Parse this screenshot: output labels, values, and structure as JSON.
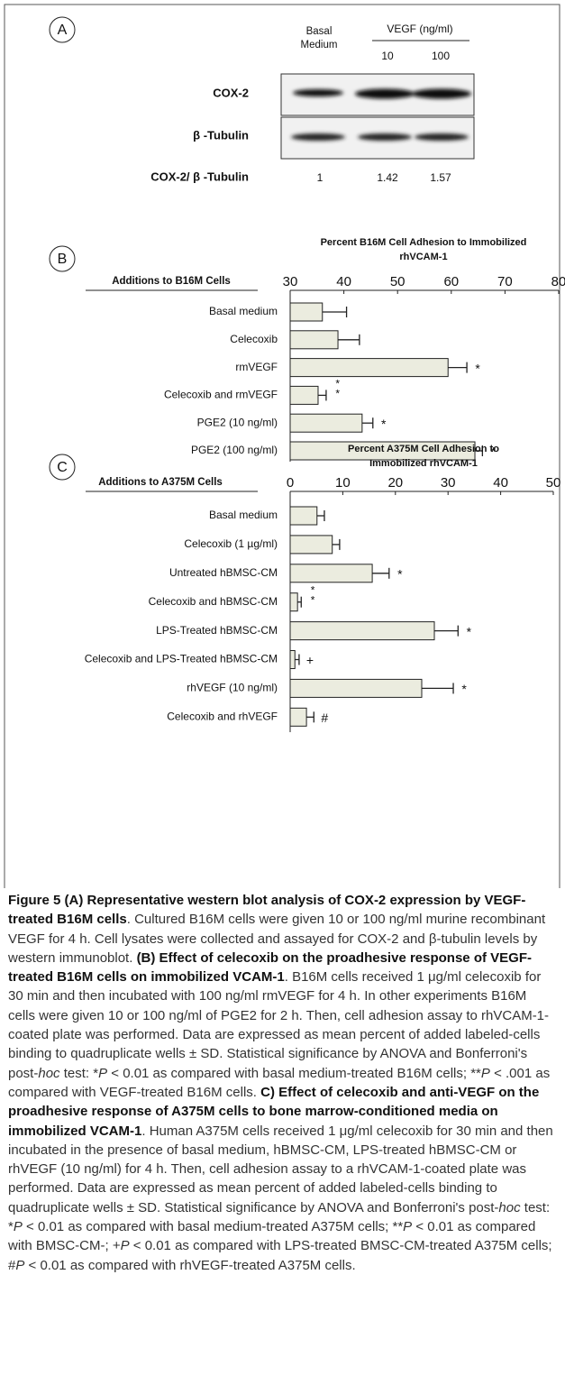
{
  "panel_a": {
    "label": "A",
    "column_header": "Basal Medium",
    "group_header": "VEGF (ng/ml)",
    "doses": [
      "10",
      "100"
    ],
    "rows": [
      "COX-2",
      "β -Tubulin"
    ],
    "ratio_label": "COX-2/ β -Tubulin",
    "ratios": [
      1,
      1.42,
      1.57
    ]
  },
  "chart_data": [
    {
      "type": "bar",
      "orientation": "horizontal",
      "panel_label": "B",
      "title": "Percent B16M Cell Adhesion to Immobilized rhVCAM-1",
      "category_header": "Additions to B16M Cells",
      "categories": [
        "Basal medium",
        "Celecoxib",
        "rmVEGF",
        "Celecoxib and rmVEGF",
        "PGE2 (10 ng/ml)",
        "PGE2 (100 ng/ml)"
      ],
      "values": [
        36.0,
        38.9,
        59.4,
        35.2,
        43.4,
        64.4
      ],
      "errors": [
        4.5,
        4.0,
        3.5,
        1.5,
        2.0,
        1.4
      ],
      "markers": [
        null,
        null,
        "*",
        "**",
        "*",
        "*"
      ],
      "color": "#ebecdf",
      "xlim": [
        30,
        80
      ],
      "xticks": [
        30,
        40,
        50,
        60,
        70,
        80
      ]
    },
    {
      "type": "bar",
      "orientation": "horizontal",
      "panel_label": "C",
      "title": "Percent A375M Cell Adhesion to Immobilized rhVCAM-1",
      "category_header": "Additions to A375M Cells",
      "categories": [
        "Basal medium",
        "Celecoxib (1 µg/ml)",
        "Untreated hBMSC-CM",
        "Celecoxib and hBMSC-CM",
        "LPS-Treated hBMSC-CM",
        "Celecoxib  and LPS-Treated hBMSC-CM",
        "rhVEGF (10 ng/ml)",
        "Celecoxib and rhVEGF"
      ],
      "values": [
        5.1,
        8.0,
        15.6,
        1.4,
        27.4,
        0.9,
        25.0,
        3.1
      ],
      "errors": [
        1.4,
        1.4,
        3.2,
        0.7,
        4.5,
        0.8,
        6.0,
        1.4
      ],
      "markers": [
        null,
        null,
        "*",
        "**",
        "*",
        "+",
        "*",
        "#"
      ],
      "color": "#ebecdf",
      "xlim": [
        0,
        50
      ],
      "xticks": [
        0,
        10,
        20,
        30,
        40,
        50
      ]
    }
  ],
  "caption": [
    {
      "text": "Figure 5 (A) Representative western blot analysis of COX-2 expression by VEGF-treated B16M cells",
      "style": "bold"
    },
    {
      "text": ". Cultured B16M cells were given 10 or 100 ng/ml murine recombinant VEGF for 4 h. Cell lysates were collected and assayed for COX-2 and β-tubulin levels by western immunoblot. ",
      "style": "plain"
    },
    {
      "text": "(B) Effect of celecoxib on the proadhesive response of VEGF-treated B16M cells on immobilized VCAM-1",
      "style": "bold"
    },
    {
      "text": ". B16M cells received 1 μg/ml celecoxib for 30 min and then incubated with 100 ng/ml rmVEGF for 4 h. In other experiments B16M cells were given 10 or 100 ng/ml of PGE2 for 2 h. Then, cell adhesion assay to rhVCAM-1-coated plate was performed. Data are expressed as mean percent of added labeled-cells binding to quadruplicate wells ± SD. Statistical significance by ANOVA and Bonferroni's post-",
      "style": "plain"
    },
    {
      "text": "hoc",
      "style": "italic"
    },
    {
      "text": " test: *",
      "style": "plain"
    },
    {
      "text": "P",
      "style": "italic"
    },
    {
      "text": " < 0.01 as compared with basal medium-treated B16M cells; **",
      "style": "plain"
    },
    {
      "text": "P",
      "style": "italic"
    },
    {
      "text": " < .001 as compared with VEGF-treated B16M cells. ",
      "style": "plain"
    },
    {
      "text": "C) Effect of celecoxib and anti-VEGF on the proadhesive response of A375M cells to bone marrow-conditioned media on immobilized VCAM-1",
      "style": "bold"
    },
    {
      "text": ". Human A375M cells received 1 μg/ml celecoxib for 30 min and then incubated in the presence of basal medium, hBMSC-CM, LPS-treated hBMSC-CM or rhVEGF (10 ng/ml) for 4 h. Then, cell adhesion assay to a rhVCAM-1-coated plate was performed. Data are expressed as mean percent of added labeled-cells binding to quadruplicate wells ± SD. Statistical significance by ANOVA and Bonferroni's post-",
      "style": "plain"
    },
    {
      "text": "hoc",
      "style": "italic"
    },
    {
      "text": " test: *",
      "style": "plain"
    },
    {
      "text": "P",
      "style": "italic"
    },
    {
      "text": " < 0.01 as compared with basal medium-treated A375M cells; **",
      "style": "plain"
    },
    {
      "text": "P",
      "style": "italic"
    },
    {
      "text": " < 0.01 as compared with BMSC-CM-; +",
      "style": "plain"
    },
    {
      "text": "P",
      "style": "italic"
    },
    {
      "text": " < 0.01 as compared with LPS-treated BMSC-CM-treated A375M cells; #",
      "style": "plain"
    },
    {
      "text": "P",
      "style": "italic"
    },
    {
      "text": " < 0.01 as compared with rhVEGF-treated A375M cells.",
      "style": "plain"
    }
  ]
}
